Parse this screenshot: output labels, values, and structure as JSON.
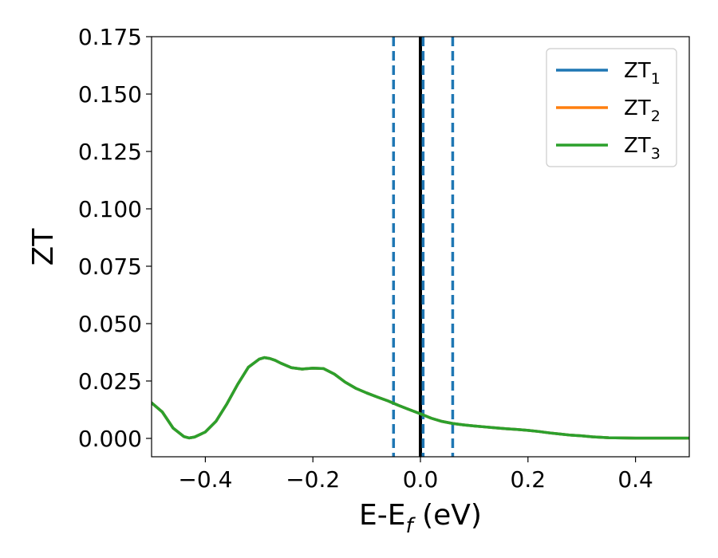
{
  "chart_data": {
    "type": "line",
    "title": "",
    "xlabel_main": "E-E",
    "xlabel_sub": "f",
    "xlabel_unit": " (eV)",
    "ylabel": "ZT",
    "xlim": [
      -0.5,
      0.5
    ],
    "ylim": [
      -0.008,
      0.175
    ],
    "x_ticks": [
      -0.4,
      -0.2,
      0.0,
      0.2,
      0.4
    ],
    "x_tick_labels": [
      "−0.4",
      "−0.2",
      "0.0",
      "0.2",
      "0.4"
    ],
    "y_ticks": [
      0.0,
      0.025,
      0.05,
      0.075,
      0.1,
      0.125,
      0.15,
      0.175
    ],
    "y_tick_labels": [
      "0.000",
      "0.025",
      "0.050",
      "0.075",
      "0.100",
      "0.125",
      "0.150",
      "0.175"
    ],
    "grid": false,
    "legend_position": "top-right",
    "series": [
      {
        "name_main": "ZT",
        "name_sub": "1",
        "color": "#1f77b4",
        "x": [
          -0.5,
          -0.48,
          -0.46,
          -0.44,
          -0.43,
          -0.42,
          -0.4,
          -0.38,
          -0.36,
          -0.34,
          -0.32,
          -0.3,
          -0.29,
          -0.28,
          -0.27,
          -0.26,
          -0.24,
          -0.22,
          -0.2,
          -0.18,
          -0.16,
          -0.14,
          -0.12,
          -0.1,
          -0.08,
          -0.06,
          -0.04,
          -0.02,
          0.0,
          0.02,
          0.04,
          0.06,
          0.08,
          0.1,
          0.12,
          0.14,
          0.16,
          0.18,
          0.2,
          0.22,
          0.24,
          0.26,
          0.28,
          0.3,
          0.32,
          0.35,
          0.4,
          0.45,
          0.5
        ],
        "y": [
          0.0155,
          0.0115,
          0.0045,
          0.0008,
          0.0002,
          0.0006,
          0.0028,
          0.0075,
          0.015,
          0.0235,
          0.031,
          0.0345,
          0.0352,
          0.0348,
          0.034,
          0.0328,
          0.0308,
          0.0302,
          0.0306,
          0.0304,
          0.028,
          0.0245,
          0.0218,
          0.0198,
          0.018,
          0.0163,
          0.0143,
          0.0125,
          0.0107,
          0.0088,
          0.0074,
          0.0065,
          0.0059,
          0.0054,
          0.005,
          0.0046,
          0.0042,
          0.0039,
          0.0035,
          0.003,
          0.0024,
          0.0019,
          0.0014,
          0.0011,
          0.0007,
          0.0003,
          0.0001,
          0.0001,
          0.0001
        ]
      },
      {
        "name_main": "ZT",
        "name_sub": "2",
        "color": "#ff7f0e",
        "x": [
          -0.5,
          -0.48,
          -0.46,
          -0.44,
          -0.43,
          -0.42,
          -0.4,
          -0.38,
          -0.36,
          -0.34,
          -0.32,
          -0.3,
          -0.29,
          -0.28,
          -0.27,
          -0.26,
          -0.24,
          -0.22,
          -0.2,
          -0.18,
          -0.16,
          -0.14,
          -0.12,
          -0.1,
          -0.08,
          -0.06,
          -0.04,
          -0.02,
          0.0,
          0.02,
          0.04,
          0.06,
          0.08,
          0.1,
          0.12,
          0.14,
          0.16,
          0.18,
          0.2,
          0.22,
          0.24,
          0.26,
          0.28,
          0.3,
          0.32,
          0.35,
          0.4,
          0.45,
          0.5
        ],
        "y": [
          0.0155,
          0.0115,
          0.0045,
          0.0008,
          0.0002,
          0.0006,
          0.0028,
          0.0075,
          0.015,
          0.0235,
          0.031,
          0.0345,
          0.0352,
          0.0348,
          0.034,
          0.0328,
          0.0308,
          0.0302,
          0.0306,
          0.0304,
          0.028,
          0.0245,
          0.0218,
          0.0198,
          0.018,
          0.0163,
          0.0143,
          0.0125,
          0.0107,
          0.0088,
          0.0074,
          0.0065,
          0.0059,
          0.0054,
          0.005,
          0.0046,
          0.0042,
          0.0039,
          0.0035,
          0.003,
          0.0024,
          0.0019,
          0.0014,
          0.0011,
          0.0007,
          0.0003,
          0.0001,
          0.0001,
          0.0001
        ]
      },
      {
        "name_main": "ZT",
        "name_sub": "3",
        "color": "#2ca02c",
        "x": [
          -0.5,
          -0.48,
          -0.46,
          -0.44,
          -0.43,
          -0.42,
          -0.4,
          -0.38,
          -0.36,
          -0.34,
          -0.32,
          -0.3,
          -0.29,
          -0.28,
          -0.27,
          -0.26,
          -0.24,
          -0.22,
          -0.2,
          -0.18,
          -0.16,
          -0.14,
          -0.12,
          -0.1,
          -0.08,
          -0.06,
          -0.04,
          -0.02,
          0.0,
          0.02,
          0.04,
          0.06,
          0.08,
          0.1,
          0.12,
          0.14,
          0.16,
          0.18,
          0.2,
          0.22,
          0.24,
          0.26,
          0.28,
          0.3,
          0.32,
          0.35,
          0.4,
          0.45,
          0.5
        ],
        "y": [
          0.0155,
          0.0115,
          0.0045,
          0.0008,
          0.0002,
          0.0006,
          0.0028,
          0.0075,
          0.015,
          0.0235,
          0.031,
          0.0345,
          0.0352,
          0.0348,
          0.034,
          0.0328,
          0.0308,
          0.0302,
          0.0306,
          0.0304,
          0.028,
          0.0245,
          0.0218,
          0.0198,
          0.018,
          0.0163,
          0.0143,
          0.0125,
          0.0107,
          0.0088,
          0.0074,
          0.0065,
          0.0059,
          0.0054,
          0.005,
          0.0046,
          0.0042,
          0.0039,
          0.0035,
          0.003,
          0.0024,
          0.0019,
          0.0014,
          0.0011,
          0.0007,
          0.0003,
          0.0001,
          0.0001,
          0.0001
        ]
      }
    ],
    "vertical_lines": [
      {
        "x": -0.05,
        "style": "dashed",
        "color": "#1f77b4"
      },
      {
        "x": 0.0,
        "style": "solid",
        "color": "#000000"
      },
      {
        "x": 0.005,
        "style": "dashed",
        "color": "#1f77b4"
      },
      {
        "x": 0.06,
        "style": "dashed",
        "color": "#1f77b4"
      }
    ]
  }
}
